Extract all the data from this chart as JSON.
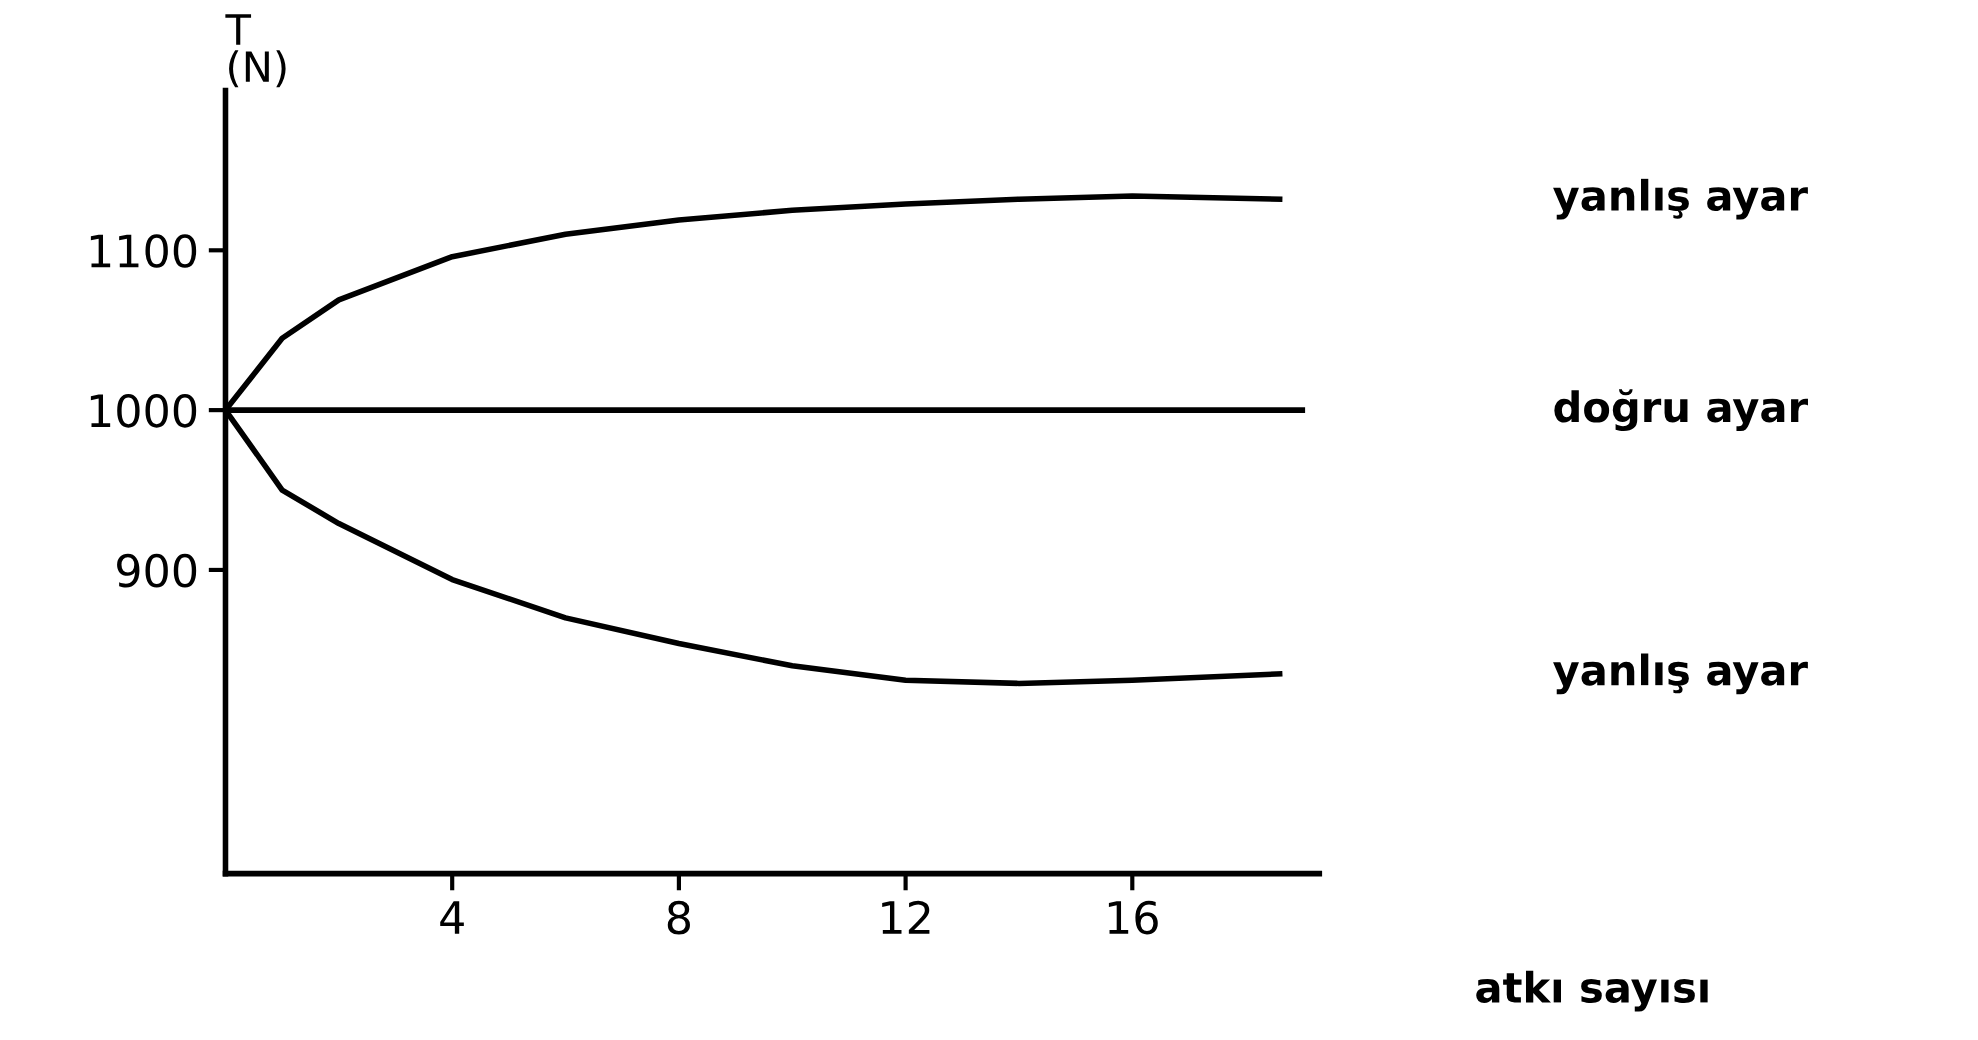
{
  "chart_data": {
    "type": "line",
    "xlabel": "atkı sayısı",
    "ylabel": "T\n(N)",
    "xlim": [
      0,
      19.3
    ],
    "ylim": [
      710,
      1200
    ],
    "xticks": [
      4,
      8,
      12,
      16
    ],
    "yticks": [
      900,
      1000,
      1100
    ],
    "grid": false,
    "legend": false,
    "marker": "none",
    "line_style": "solid",
    "series": [
      {
        "name": "yanlış ayar",
        "color": "#000000",
        "x": [
          0,
          1,
          2,
          4,
          6,
          8,
          10,
          12,
          14,
          16,
          18.6
        ],
        "values": [
          1000,
          1045,
          1069,
          1096,
          1110,
          1119,
          1125,
          1129,
          1132,
          1134,
          1132
        ]
      },
      {
        "name": "doğru ayar",
        "color": "#000000",
        "x": [
          0,
          19
        ],
        "values": [
          1000,
          1000
        ]
      },
      {
        "name": "yanlış ayar",
        "color": "#000000",
        "x": [
          0,
          1,
          2,
          4,
          6,
          8,
          10,
          12,
          14,
          16,
          18.6
        ],
        "values": [
          1000,
          950,
          929,
          894,
          870,
          854,
          840,
          831,
          829,
          831,
          835
        ]
      }
    ]
  }
}
